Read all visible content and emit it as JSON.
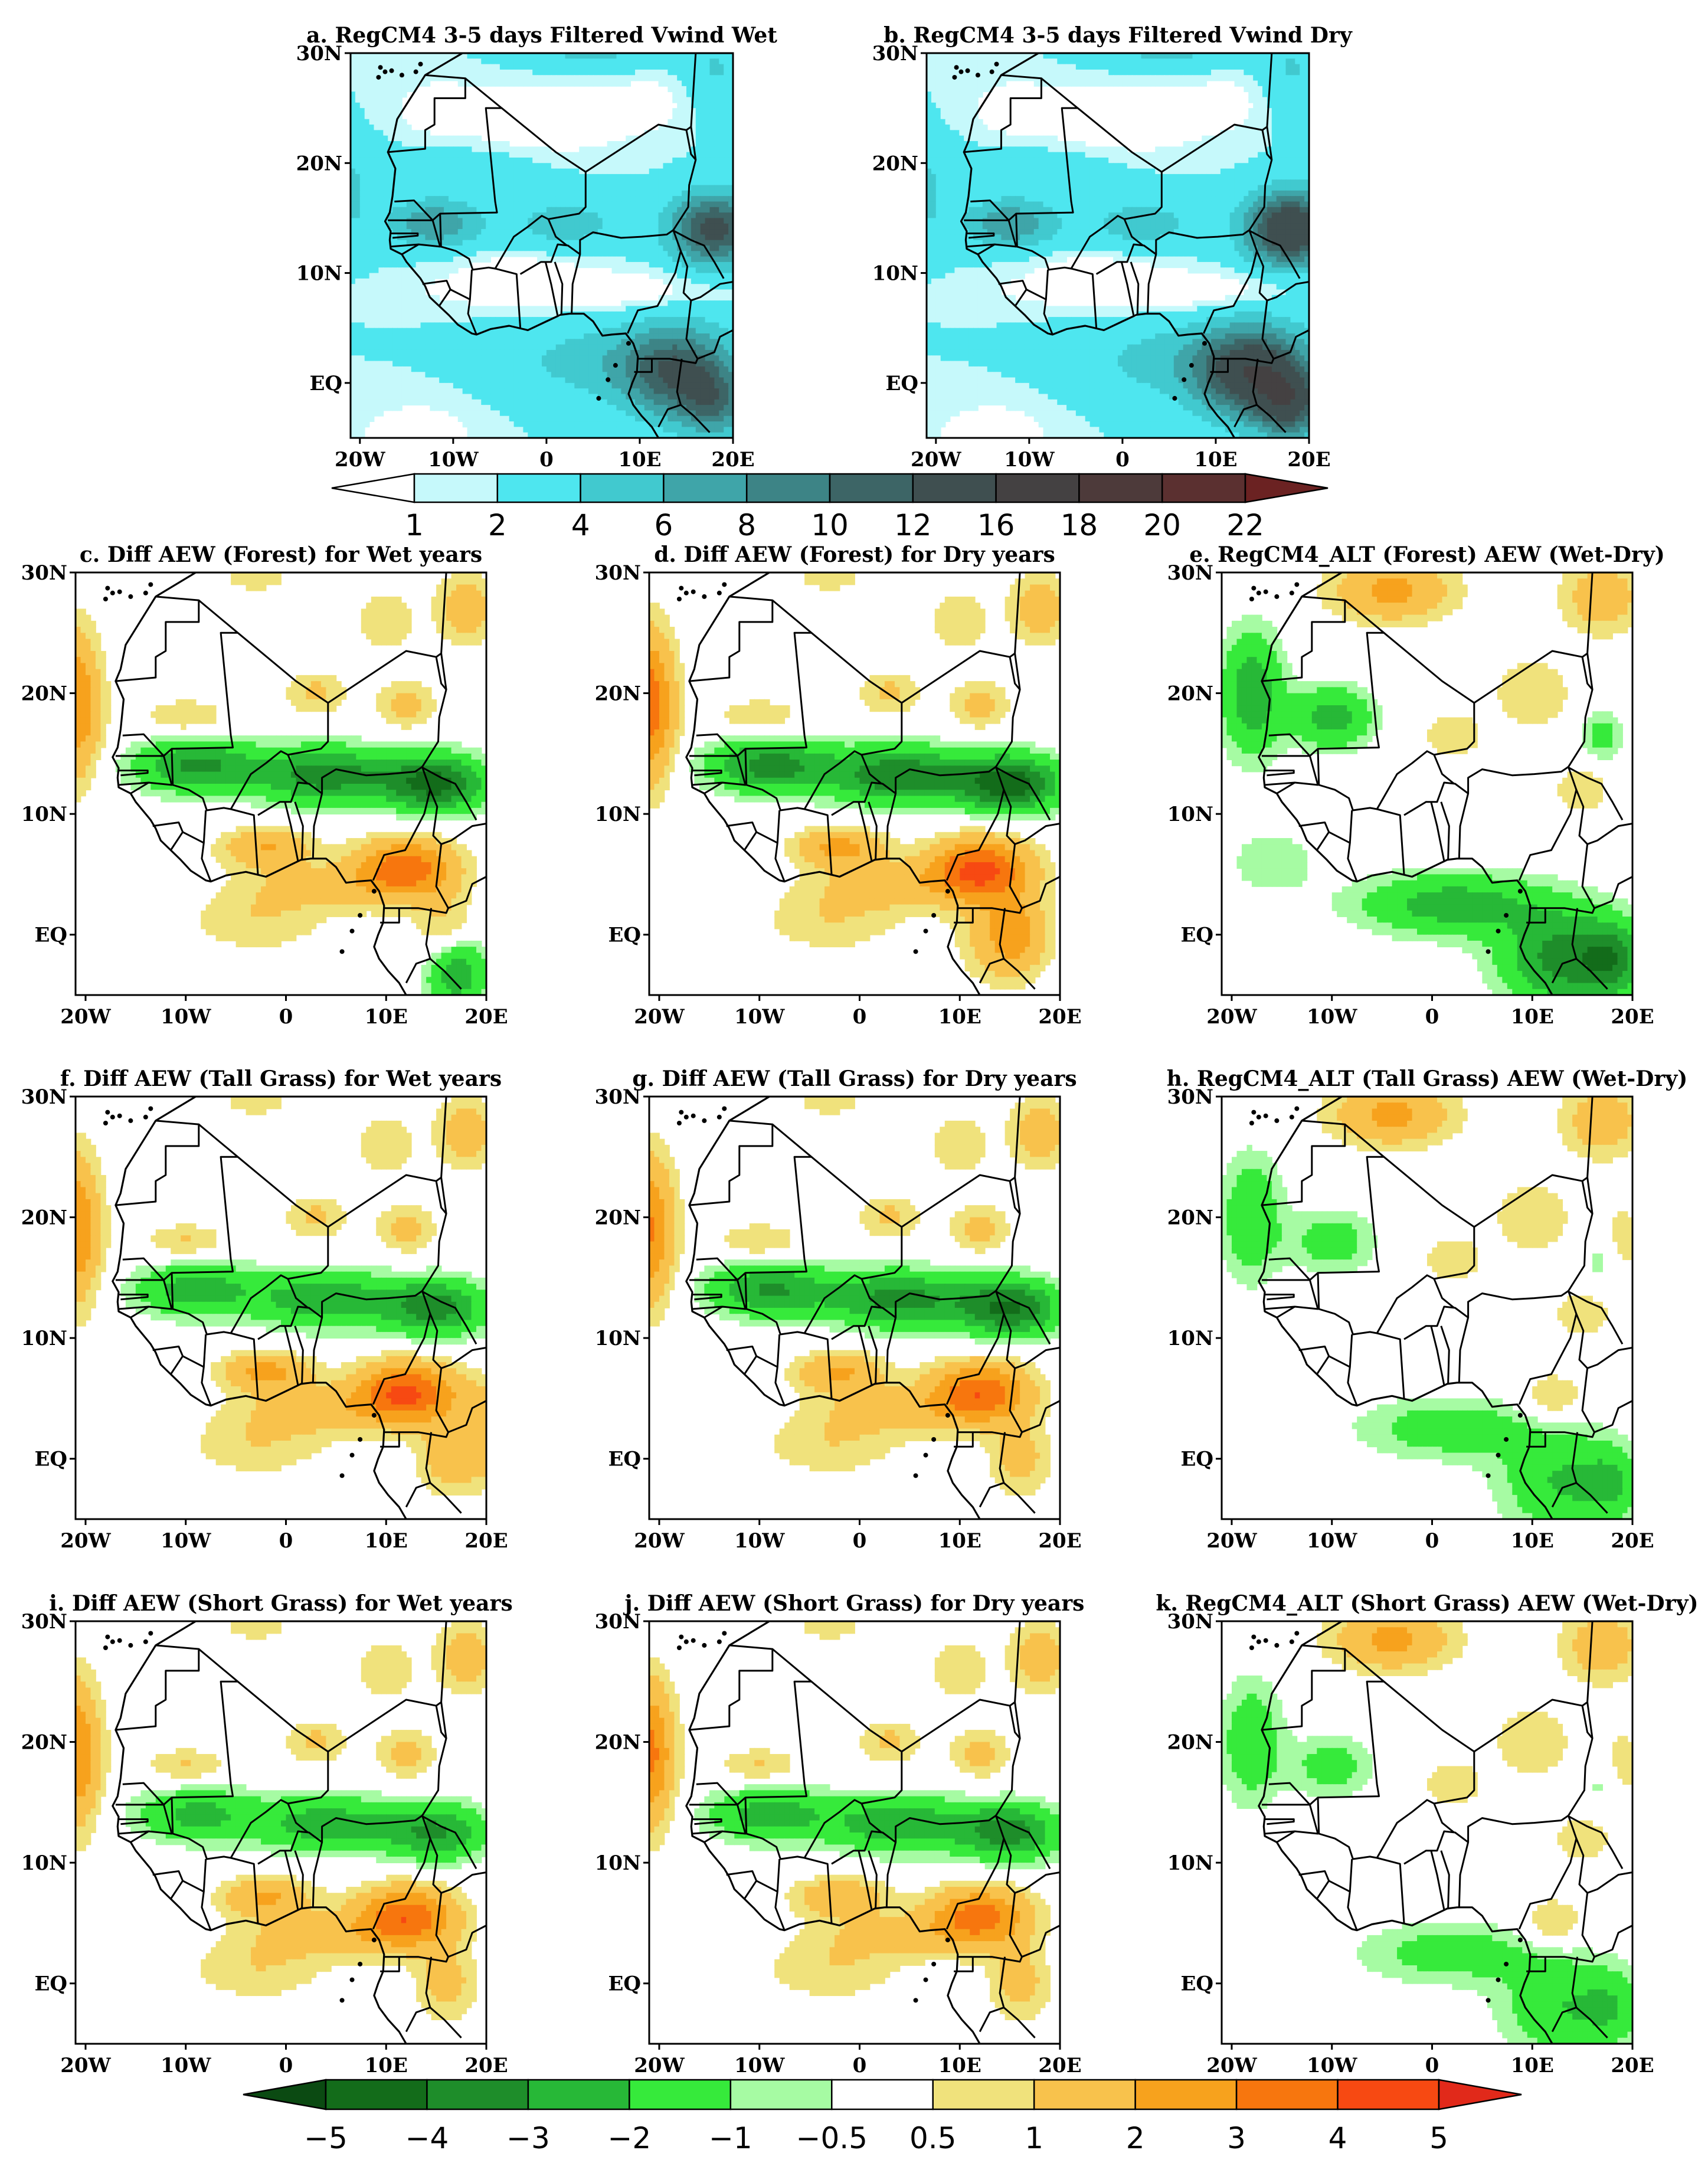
{
  "figure": {
    "panels": [
      {
        "id": "a",
        "title": "a. RegCM4 3-5 days Filtered Vwind Wet",
        "field": "vwind",
        "variant": "wet"
      },
      {
        "id": "b",
        "title": "b. RegCM4 3-5 days Filtered Vwind Dry",
        "field": "vwind",
        "variant": "dry"
      },
      {
        "id": "c",
        "title": "c. Diff AEW (Forest) for Wet years",
        "field": "diff",
        "variant": "forest_wet"
      },
      {
        "id": "d",
        "title": "d. Diff AEW (Forest) for Dry years",
        "field": "diff",
        "variant": "forest_dry"
      },
      {
        "id": "e",
        "title": "e. RegCM4_ALT (Forest) AEW (Wet-Dry)",
        "field": "alt",
        "variant": "forest"
      },
      {
        "id": "f",
        "title": "f. Diff AEW (Tall Grass) for Wet years",
        "field": "diff",
        "variant": "tall_wet"
      },
      {
        "id": "g",
        "title": "g. Diff AEW (Tall Grass) for Dry years",
        "field": "diff",
        "variant": "tall_dry"
      },
      {
        "id": "h",
        "title": "h. RegCM4_ALT (Tall Grass) AEW (Wet-Dry)",
        "field": "alt",
        "variant": "tall"
      },
      {
        "id": "i",
        "title": "i. Diff AEW (Short Grass) for Wet years",
        "field": "diff",
        "variant": "short_wet"
      },
      {
        "id": "j",
        "title": "j. Diff AEW (Short Grass) for Dry years",
        "field": "diff",
        "variant": "short_dry"
      },
      {
        "id": "k",
        "title": "k. RegCM4_ALT (Short Grass) AEW (Wet-Dry)",
        "field": "alt",
        "variant": "short"
      }
    ],
    "lat_ticks": [
      "30N",
      "20N",
      "10N",
      "EQ"
    ],
    "lon_ticks": [
      "20W",
      "10W",
      "0",
      "10E",
      "20E"
    ],
    "map_extent": {
      "lon_min": -21,
      "lon_max": 20,
      "lat_min": -5,
      "lat_max": 30
    },
    "colorbar_top": {
      "labels": [
        "1",
        "2",
        "4",
        "6",
        "8",
        "10",
        "12",
        "16",
        "18",
        "20",
        "22"
      ],
      "colors": [
        "#ffffff",
        "#c6f9fb",
        "#4ee6ef",
        "#41c9cf",
        "#3fa5a9",
        "#3d8486",
        "#3d6566",
        "#3f4f50",
        "#444142",
        "#4d3a3a",
        "#5b3030",
        "#6b2222"
      ]
    },
    "colorbar_bottom": {
      "labels": [
        "-5",
        "-4",
        "-3",
        "-2",
        "-1",
        "-0.5",
        "0.5",
        "1",
        "2",
        "3",
        "4",
        "5"
      ],
      "colors": [
        "#0b4a12",
        "#136c1a",
        "#1e8d2a",
        "#27b837",
        "#36ea3b",
        "#a6fba3",
        "#ffffff",
        "#f0e27c",
        "#f8c24c",
        "#f7a21d",
        "#f7760e",
        "#f74912",
        "#e1291a"
      ]
    }
  }
}
